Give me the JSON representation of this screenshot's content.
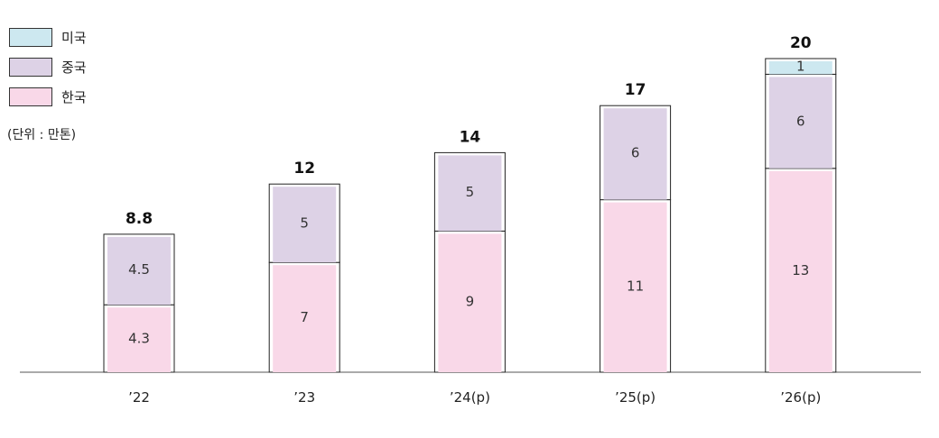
{
  "chart_data": {
    "type": "bar",
    "stacked": true,
    "categories": [
      "’22",
      "’23",
      "’24(p)",
      "’25(p)",
      "’26(p)"
    ],
    "series": [
      {
        "name": "한국",
        "values": [
          4.3,
          7,
          9,
          11,
          13
        ],
        "color": "#f9d8e8"
      },
      {
        "name": "중국",
        "values": [
          4.5,
          5,
          5,
          6,
          6
        ],
        "color": "#ddd2e6"
      },
      {
        "name": "미국",
        "values": [
          null,
          null,
          null,
          null,
          1
        ],
        "color": "#cde8f0"
      }
    ],
    "totals": [
      8.8,
      12,
      14,
      17,
      20
    ],
    "unit": "(단위 : 만톤)",
    "legend_position": "top-left",
    "grid": false
  }
}
